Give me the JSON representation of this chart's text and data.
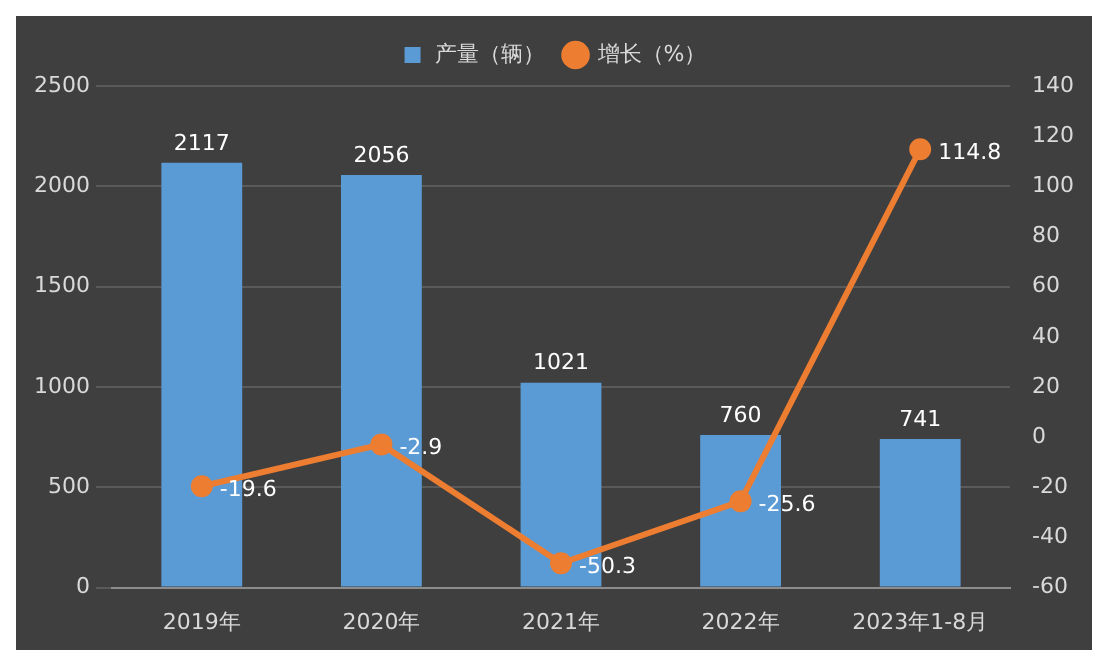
{
  "chart_data": {
    "type": "bar",
    "categories": [
      "2019年",
      "2020年",
      "2021年",
      "2022年",
      "2023年1-8月"
    ],
    "series": [
      {
        "name": "产量（辆）",
        "color": "#5b9bd5",
        "values": [
          2117,
          2056,
          1021,
          760,
          741
        ]
      },
      {
        "name": "增长（%）",
        "type": "line",
        "axis": "y2",
        "color": "#ed7d31",
        "values": [
          -19.6,
          -2.9,
          -50.3,
          -25.6,
          114.8
        ]
      }
    ],
    "ylim": [
      0,
      2500
    ],
    "yticks": [
      0,
      500,
      1000,
      1500,
      2000,
      2500
    ],
    "y2lim": [
      -60,
      140
    ],
    "y2ticks": [
      -60,
      -40,
      -20,
      0,
      20,
      40,
      60,
      80,
      100,
      120,
      140
    ],
    "grid": "y",
    "legend": "top",
    "marker": "circle",
    "line_style": "solid",
    "data_labels": true
  }
}
